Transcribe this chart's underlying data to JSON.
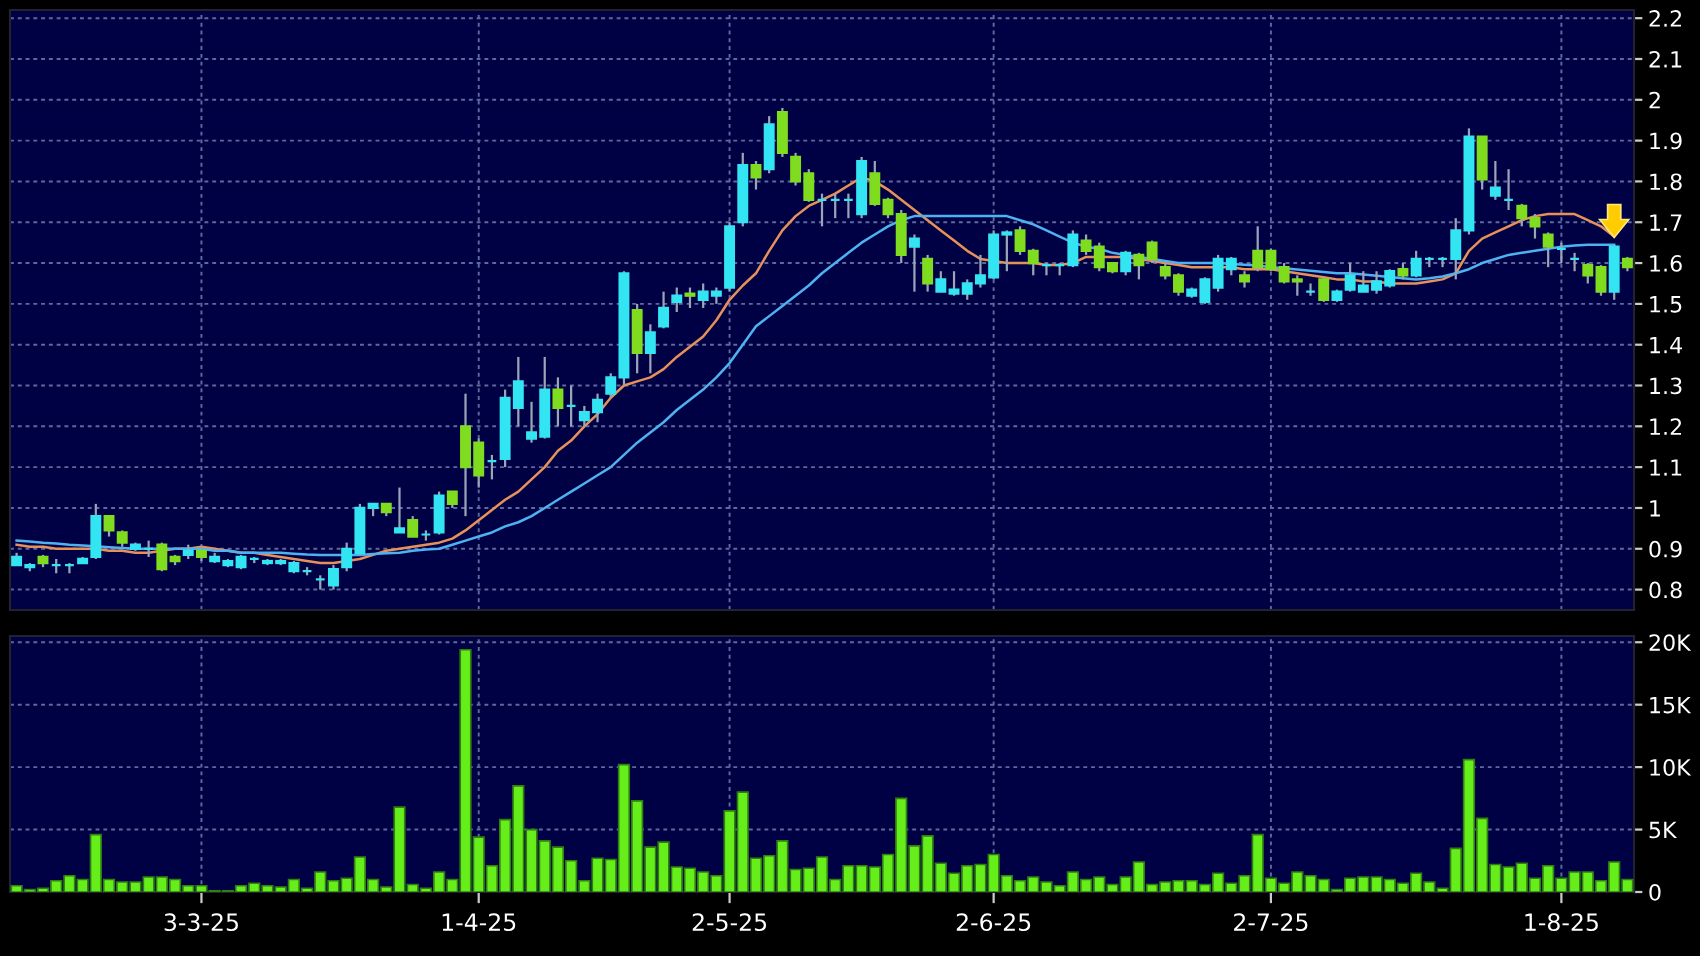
{
  "chart_data": [
    {
      "type": "candlestick",
      "tick_labels": "y",
      "grid": true,
      "ylim": [
        0.75,
        2.22
      ],
      "yticks": [
        0.8,
        0.9,
        1,
        1.1,
        1.2,
        1.3,
        1.4,
        1.5,
        1.6,
        1.7,
        1.8,
        1.9,
        2,
        2.1,
        2.2
      ],
      "ohlc": [
        [
          0.86,
          0.89,
          0.86,
          0.88
        ],
        [
          0.855,
          0.865,
          0.845,
          0.86
        ],
        [
          0.88,
          0.885,
          0.855,
          0.865
        ],
        [
          0.86,
          0.875,
          0.84,
          0.86
        ],
        [
          0.86,
          0.865,
          0.84,
          0.86
        ],
        [
          0.865,
          0.88,
          0.865,
          0.875
        ],
        [
          0.88,
          1.01,
          0.875,
          0.98
        ],
        [
          0.98,
          0.98,
          0.93,
          0.945
        ],
        [
          0.94,
          0.945,
          0.905,
          0.915
        ],
        [
          0.9,
          0.915,
          0.895,
          0.91
        ],
        [
          0.9,
          0.92,
          0.88,
          0.9
        ],
        [
          0.91,
          0.915,
          0.845,
          0.85
        ],
        [
          0.88,
          0.885,
          0.86,
          0.87
        ],
        [
          0.885,
          0.91,
          0.875,
          0.895
        ],
        [
          0.895,
          0.9,
          0.87,
          0.88
        ],
        [
          0.87,
          0.89,
          0.865,
          0.88
        ],
        [
          0.86,
          0.875,
          0.855,
          0.87
        ],
        [
          0.855,
          0.885,
          0.85,
          0.88
        ],
        [
          0.875,
          0.88,
          0.865,
          0.875
        ],
        [
          0.865,
          0.875,
          0.86,
          0.87
        ],
        [
          0.865,
          0.875,
          0.86,
          0.87
        ],
        [
          0.845,
          0.87,
          0.84,
          0.865
        ],
        [
          0.845,
          0.855,
          0.835,
          0.845
        ],
        [
          0.825,
          0.835,
          0.8,
          0.825
        ],
        [
          0.81,
          0.86,
          0.8,
          0.85
        ],
        [
          0.855,
          0.915,
          0.845,
          0.9
        ],
        [
          0.89,
          1.01,
          0.885,
          1.0
        ],
        [
          1.0,
          1.01,
          0.98,
          1.01
        ],
        [
          1.01,
          1.01,
          0.98,
          0.99
        ],
        [
          0.94,
          1.05,
          0.94,
          0.95
        ],
        [
          0.97,
          0.98,
          0.93,
          0.93
        ],
        [
          0.935,
          0.945,
          0.92,
          0.935
        ],
        [
          0.94,
          1.04,
          0.935,
          1.03
        ],
        [
          1.04,
          1.04,
          1.0,
          1.01
        ],
        [
          1.2,
          1.28,
          0.98,
          1.1
        ],
        [
          1.16,
          1.17,
          1.05,
          1.08
        ],
        [
          1.115,
          1.13,
          1.07,
          1.115
        ],
        [
          1.12,
          1.29,
          1.1,
          1.27
        ],
        [
          1.245,
          1.37,
          1.2,
          1.31
        ],
        [
          1.17,
          1.26,
          1.16,
          1.185
        ],
        [
          1.175,
          1.37,
          1.17,
          1.29
        ],
        [
          1.29,
          1.32,
          1.2,
          1.245
        ],
        [
          1.25,
          1.3,
          1.2,
          1.25
        ],
        [
          1.215,
          1.25,
          1.2,
          1.235
        ],
        [
          1.235,
          1.28,
          1.21,
          1.265
        ],
        [
          1.28,
          1.33,
          1.27,
          1.32
        ],
        [
          1.32,
          1.58,
          1.3,
          1.575
        ],
        [
          1.485,
          1.5,
          1.33,
          1.38
        ],
        [
          1.38,
          1.45,
          1.33,
          1.43
        ],
        [
          1.445,
          1.53,
          1.44,
          1.49
        ],
        [
          1.505,
          1.54,
          1.48,
          1.52
        ],
        [
          1.525,
          1.54,
          1.49,
          1.52
        ],
        [
          1.51,
          1.55,
          1.49,
          1.53
        ],
        [
          1.52,
          1.54,
          1.5,
          1.53
        ],
        [
          1.54,
          1.7,
          1.53,
          1.69
        ],
        [
          1.7,
          1.87,
          1.69,
          1.84
        ],
        [
          1.84,
          1.85,
          1.78,
          1.81
        ],
        [
          1.83,
          1.96,
          1.82,
          1.94
        ],
        [
          1.97,
          1.98,
          1.86,
          1.87
        ],
        [
          1.86,
          1.87,
          1.79,
          1.8
        ],
        [
          1.82,
          1.83,
          1.75,
          1.755
        ],
        [
          1.755,
          1.77,
          1.69,
          1.755
        ],
        [
          1.755,
          1.77,
          1.71,
          1.755
        ],
        [
          1.755,
          1.77,
          1.71,
          1.755
        ],
        [
          1.72,
          1.86,
          1.71,
          1.85
        ],
        [
          1.82,
          1.85,
          1.74,
          1.745
        ],
        [
          1.755,
          1.76,
          1.71,
          1.72
        ],
        [
          1.72,
          1.73,
          1.6,
          1.62
        ],
        [
          1.64,
          1.67,
          1.53,
          1.66
        ],
        [
          1.61,
          1.62,
          1.53,
          1.55
        ],
        [
          1.53,
          1.58,
          1.53,
          1.56
        ],
        [
          1.525,
          1.58,
          1.52,
          1.535
        ],
        [
          1.525,
          1.56,
          1.51,
          1.55
        ],
        [
          1.55,
          1.62,
          1.54,
          1.57
        ],
        [
          1.565,
          1.68,
          1.56,
          1.67
        ],
        [
          1.67,
          1.68,
          1.58,
          1.675
        ],
        [
          1.68,
          1.69,
          1.62,
          1.63
        ],
        [
          1.63,
          1.635,
          1.57,
          1.6
        ],
        [
          1.595,
          1.6,
          1.57,
          1.595
        ],
        [
          1.595,
          1.6,
          1.57,
          1.595
        ],
        [
          1.595,
          1.68,
          1.59,
          1.67
        ],
        [
          1.655,
          1.67,
          1.62,
          1.63
        ],
        [
          1.64,
          1.65,
          1.58,
          1.59
        ],
        [
          1.6,
          1.6,
          1.575,
          1.58
        ],
        [
          1.58,
          1.63,
          1.57,
          1.625
        ],
        [
          1.62,
          1.625,
          1.56,
          1.595
        ],
        [
          1.65,
          1.655,
          1.6,
          1.61
        ],
        [
          1.59,
          1.6,
          1.56,
          1.57
        ],
        [
          1.57,
          1.575,
          1.52,
          1.53
        ],
        [
          1.52,
          1.54,
          1.515,
          1.535
        ],
        [
          1.505,
          1.565,
          1.5,
          1.56
        ],
        [
          1.54,
          1.62,
          1.53,
          1.61
        ],
        [
          1.585,
          1.615,
          1.57,
          1.61
        ],
        [
          1.57,
          1.58,
          1.54,
          1.555
        ],
        [
          1.63,
          1.69,
          1.58,
          1.59
        ],
        [
          1.63,
          1.635,
          1.58,
          1.585
        ],
        [
          1.59,
          1.6,
          1.55,
          1.555
        ],
        [
          1.56,
          1.57,
          1.52,
          1.555
        ],
        [
          1.53,
          1.55,
          1.52,
          1.53
        ],
        [
          1.56,
          1.565,
          1.505,
          1.51
        ],
        [
          1.51,
          1.535,
          1.505,
          1.53
        ],
        [
          1.535,
          1.6,
          1.53,
          1.57
        ],
        [
          1.53,
          1.58,
          1.53,
          1.545
        ],
        [
          1.535,
          1.58,
          1.525,
          1.555
        ],
        [
          1.545,
          1.585,
          1.54,
          1.58
        ],
        [
          1.585,
          1.6,
          1.56,
          1.57
        ],
        [
          1.57,
          1.63,
          1.565,
          1.61
        ],
        [
          1.61,
          1.615,
          1.59,
          1.61
        ],
        [
          1.61,
          1.615,
          1.59,
          1.61
        ],
        [
          1.61,
          1.71,
          1.56,
          1.68
        ],
        [
          1.68,
          1.93,
          1.67,
          1.91
        ],
        [
          1.91,
          1.91,
          1.78,
          1.805
        ],
        [
          1.765,
          1.85,
          1.755,
          1.785
        ],
        [
          1.755,
          1.83,
          1.73,
          1.755
        ],
        [
          1.74,
          1.745,
          1.69,
          1.71
        ],
        [
          1.71,
          1.72,
          1.66,
          1.69
        ],
        [
          1.67,
          1.675,
          1.59,
          1.64
        ],
        [
          1.635,
          1.65,
          1.6,
          1.635
        ],
        [
          1.61,
          1.625,
          1.58,
          1.61
        ],
        [
          1.595,
          1.6,
          1.55,
          1.57
        ],
        [
          1.59,
          1.595,
          1.52,
          1.53
        ],
        [
          1.53,
          1.645,
          1.51,
          1.64
        ],
        [
          1.61,
          1.615,
          1.58,
          1.59
        ]
      ],
      "colors": [
        "#33e5f2",
        "#33e5f2",
        "#7fdc1f",
        "#33e5f2",
        "#33e5f2",
        "#33e5f2",
        "#33e5f2",
        "#7fdc1f",
        "#7fdc1f",
        "#33e5f2",
        "#33e5f2",
        "#7fdc1f",
        "#7fdc1f",
        "#33e5f2",
        "#7fdc1f",
        "#33e5f2",
        "#33e5f2",
        "#33e5f2",
        "#33e5f2",
        "#33e5f2",
        "#33e5f2",
        "#33e5f2",
        "#33e5f2",
        "#33e5f2",
        "#33e5f2",
        "#33e5f2",
        "#33e5f2",
        "#33e5f2",
        "#7fdc1f",
        "#33e5f2",
        "#7fdc1f",
        "#33e5f2",
        "#33e5f2",
        "#7fdc1f",
        "#7fdc1f",
        "#7fdc1f",
        "#33e5f2",
        "#33e5f2",
        "#33e5f2",
        "#33e5f2",
        "#33e5f2",
        "#7fdc1f",
        "#33e5f2",
        "#33e5f2",
        "#33e5f2",
        "#33e5f2",
        "#33e5f2",
        "#7fdc1f",
        "#33e5f2",
        "#33e5f2",
        "#33e5f2",
        "#7fdc1f",
        "#33e5f2",
        "#33e5f2",
        "#33e5f2",
        "#33e5f2",
        "#7fdc1f",
        "#33e5f2",
        "#7fdc1f",
        "#7fdc1f",
        "#7fdc1f",
        "#33e5f2",
        "#33e5f2",
        "#33e5f2",
        "#33e5f2",
        "#7fdc1f",
        "#7fdc1f",
        "#7fdc1f",
        "#33e5f2",
        "#7fdc1f",
        "#33e5f2",
        "#33e5f2",
        "#33e5f2",
        "#33e5f2",
        "#33e5f2",
        "#33e5f2",
        "#7fdc1f",
        "#7fdc1f",
        "#33e5f2",
        "#33e5f2",
        "#33e5f2",
        "#7fdc1f",
        "#7fdc1f",
        "#7fdc1f",
        "#33e5f2",
        "#7fdc1f",
        "#7fdc1f",
        "#7fdc1f",
        "#7fdc1f",
        "#33e5f2",
        "#33e5f2",
        "#33e5f2",
        "#33e5f2",
        "#7fdc1f",
        "#7fdc1f",
        "#7fdc1f",
        "#7fdc1f",
        "#7fdc1f",
        "#33e5f2",
        "#7fdc1f",
        "#33e5f2",
        "#33e5f2",
        "#33e5f2",
        "#33e5f2",
        "#33e5f2",
        "#7fdc1f",
        "#33e5f2",
        "#33e5f2",
        "#33e5f2",
        "#33e5f2",
        "#33e5f2",
        "#7fdc1f",
        "#33e5f2",
        "#33e5f2",
        "#7fdc1f",
        "#7fdc1f",
        "#7fdc1f",
        "#33e5f2",
        "#33e5f2",
        "#7fdc1f",
        "#7fdc1f",
        "#33e5f2",
        "#7fdc1f"
      ],
      "series": [
        {
          "type": "line",
          "color": "#e8905a",
          "values": [
            0.91,
            0.905,
            0.905,
            0.9,
            0.9,
            0.9,
            0.9,
            0.895,
            0.895,
            0.89,
            0.89,
            0.895,
            0.9,
            0.9,
            0.905,
            0.9,
            0.895,
            0.89,
            0.89,
            0.885,
            0.88,
            0.875,
            0.87,
            0.865,
            0.865,
            0.87,
            0.875,
            0.885,
            0.895,
            0.9,
            0.905,
            0.91,
            0.915,
            0.925,
            0.945,
            0.97,
            0.995,
            1.02,
            1.04,
            1.07,
            1.1,
            1.14,
            1.165,
            1.2,
            1.23,
            1.27,
            1.3,
            1.31,
            1.32,
            1.34,
            1.37,
            1.395,
            1.42,
            1.46,
            1.51,
            1.545,
            1.575,
            1.63,
            1.68,
            1.715,
            1.74,
            1.755,
            1.77,
            1.79,
            1.81,
            1.8,
            1.78,
            1.755,
            1.73,
            1.705,
            1.68,
            1.655,
            1.63,
            1.61,
            1.605,
            1.6,
            1.6,
            1.6,
            1.595,
            1.595,
            1.6,
            1.615,
            1.615,
            1.615,
            1.615,
            1.61,
            1.605,
            1.6,
            1.595,
            1.59,
            1.59,
            1.59,
            1.59,
            1.585,
            1.585,
            1.585,
            1.58,
            1.575,
            1.57,
            1.565,
            1.56,
            1.56,
            1.555,
            1.555,
            1.55,
            1.55,
            1.55,
            1.555,
            1.56,
            1.575,
            1.63,
            1.66,
            1.675,
            1.69,
            1.705,
            1.715,
            1.72,
            1.72,
            1.72,
            1.705,
            1.69,
            1.665,
            null
          ]
        },
        {
          "type": "line",
          "color": "#4fb2f0",
          "values": [
            0.92,
            0.918,
            0.915,
            0.913,
            0.91,
            0.908,
            0.906,
            0.904,
            0.902,
            0.9,
            0.9,
            0.9,
            0.9,
            0.9,
            0.9,
            0.895,
            0.895,
            0.89,
            0.89,
            0.89,
            0.89,
            0.888,
            0.886,
            0.885,
            0.885,
            0.885,
            0.885,
            0.887,
            0.889,
            0.89,
            0.895,
            0.898,
            0.9,
            0.91,
            0.92,
            0.93,
            0.94,
            0.955,
            0.965,
            0.98,
            1.0,
            1.02,
            1.04,
            1.06,
            1.08,
            1.1,
            1.13,
            1.16,
            1.185,
            1.21,
            1.24,
            1.265,
            1.29,
            1.32,
            1.355,
            1.4,
            1.445,
            1.47,
            1.495,
            1.52,
            1.545,
            1.575,
            1.6,
            1.625,
            1.65,
            1.67,
            1.69,
            1.705,
            1.715,
            1.715,
            1.715,
            1.715,
            1.715,
            1.715,
            1.715,
            1.715,
            1.705,
            1.695,
            1.68,
            1.665,
            1.65,
            1.64,
            1.635,
            1.625,
            1.62,
            1.615,
            1.61,
            1.605,
            1.6,
            1.6,
            1.6,
            1.6,
            1.598,
            1.596,
            1.594,
            1.59,
            1.587,
            1.584,
            1.581,
            1.578,
            1.575,
            1.575,
            1.572,
            1.569,
            1.566,
            1.563,
            1.56,
            1.563,
            1.567,
            1.575,
            1.585,
            1.6,
            1.61,
            1.62,
            1.625,
            1.63,
            1.635,
            1.64,
            1.643,
            1.645,
            1.645,
            1.645,
            null
          ]
        }
      ]
    },
    {
      "type": "bar",
      "grid": true,
      "color": "#66ee1a",
      "categories": [
        null,
        null,
        null,
        null,
        null,
        null,
        null,
        null,
        null,
        null,
        null,
        null,
        null,
        null,
        "3-3-25",
        null,
        null,
        null,
        null,
        null,
        null,
        null,
        null,
        null,
        null,
        null,
        null,
        null,
        null,
        null,
        null,
        null,
        null,
        null,
        null,
        "1-4-25",
        null,
        null,
        null,
        null,
        null,
        null,
        null,
        null,
        null,
        null,
        null,
        null,
        null,
        null,
        null,
        null,
        null,
        null,
        "2-5-25",
        null,
        null,
        null,
        null,
        null,
        null,
        null,
        null,
        null,
        null,
        null,
        null,
        null,
        null,
        null,
        null,
        null,
        null,
        null,
        "2-6-25",
        null,
        null,
        null,
        null,
        null,
        null,
        null,
        null,
        null,
        null,
        null,
        null,
        null,
        null,
        null,
        null,
        null,
        null,
        null,
        null,
        "2-7-25",
        null,
        null,
        null,
        null,
        null,
        null,
        null,
        null,
        null,
        null,
        null,
        null,
        null,
        null,
        null,
        null,
        null,
        null,
        null,
        null,
        null,
        "1-8-25",
        null,
        null,
        null,
        null,
        null
      ],
      "ylim": [
        0,
        20500
      ],
      "yticks": [
        0,
        {
          "value": 5000,
          "label": "5K"
        },
        {
          "value": 10000,
          "label": "10K"
        },
        {
          "value": 15000,
          "label": "15K"
        },
        {
          "value": 20000,
          "label": "20K"
        }
      ],
      "values": [
        500,
        200,
        300,
        900,
        1300,
        1000,
        4600,
        1000,
        800,
        800,
        1200,
        1200,
        1000,
        500,
        500,
        100,
        100,
        500,
        700,
        500,
        400,
        1000,
        300,
        1600,
        900,
        1100,
        2800,
        1000,
        400,
        6800,
        600,
        300,
        1600,
        1000,
        19400,
        4400,
        2100,
        5800,
        8500,
        5000,
        4100,
        3600,
        2500,
        900,
        2700,
        2600,
        10200,
        7300,
        3600,
        4000,
        2000,
        1900,
        1600,
        1300,
        6500,
        8000,
        2700,
        2900,
        4100,
        1800,
        1900,
        2800,
        1000,
        2100,
        2100,
        2000,
        3000,
        7500,
        3700,
        4500,
        2300,
        1500,
        2100,
        2200,
        3000,
        1300,
        900,
        1200,
        800,
        500,
        1600,
        1000,
        1200,
        600,
        1200,
        2400,
        600,
        800,
        900,
        900,
        600,
        1500,
        700,
        1300,
        4600,
        1100,
        700,
        1600,
        1300,
        1000,
        200,
        1100,
        1200,
        1200,
        1000,
        700,
        1500,
        800,
        300,
        3500,
        10600,
        5900,
        2200,
        2000,
        2300,
        1100,
        2100,
        1100,
        1600,
        1600,
        900,
        2400,
        1000
      ]
    }
  ]
}
